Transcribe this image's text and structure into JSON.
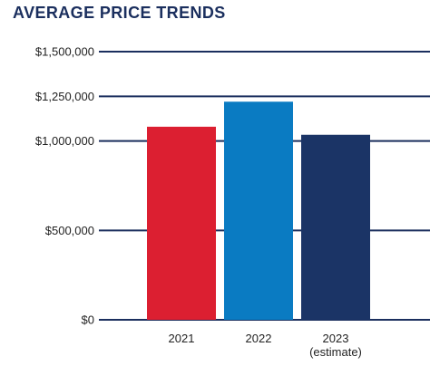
{
  "chart_data": {
    "type": "bar",
    "title": "AVERAGE PRICE TRENDS",
    "categories": [
      {
        "label": "2021",
        "sublabel": ""
      },
      {
        "label": "2022",
        "sublabel": ""
      },
      {
        "label": "2023",
        "sublabel": "(estimate)"
      }
    ],
    "values": [
      1080000,
      1220000,
      1035000
    ],
    "colors": [
      "#dc1f31",
      "#0a7bc2",
      "#1b3466"
    ],
    "yticks": [
      {
        "value": 0,
        "label": "$0"
      },
      {
        "value": 500000,
        "label": "$500,000"
      },
      {
        "value": 1000000,
        "label": "$1,000,000"
      },
      {
        "value": 1250000,
        "label": "$1,250,000"
      },
      {
        "value": 1500000,
        "label": "$1,500,000"
      }
    ],
    "xlabel": "",
    "ylabel": "",
    "gridline_color": "#1b2f5e",
    "grid": true,
    "legend": "none"
  }
}
